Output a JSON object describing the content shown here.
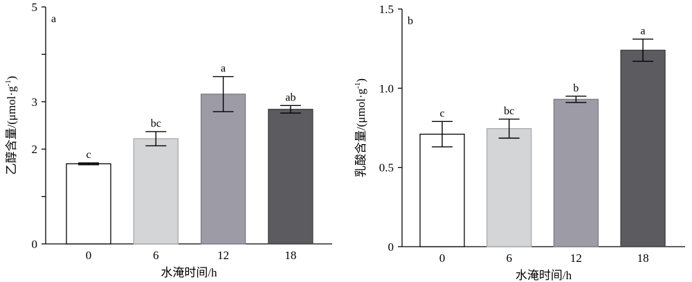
{
  "chart_data": [
    {
      "type": "bar",
      "panel_label": "a",
      "categories": [
        "0",
        "6",
        "12",
        "18"
      ],
      "values": [
        1.69,
        2.22,
        3.16,
        2.84
      ],
      "errors": [
        0.02,
        0.15,
        0.37,
        0.08
      ],
      "significance": [
        "c",
        "bc",
        "a",
        "ab"
      ],
      "ylabel": "乙醇含量/(μmol·g",
      "ylabel_sup": "-1",
      "ylabel_end": ")",
      "xlabel": "水淹时间/h",
      "ylim": [
        0,
        5
      ],
      "yticks": [
        0,
        1,
        2,
        3,
        4,
        5
      ],
      "ytick_labels": [
        "0",
        "",
        "2",
        "3",
        "",
        "5"
      ],
      "bar_colors": [
        "#ffffff",
        "#d4d5d7",
        "#9d9ca6",
        "#5c5b60"
      ],
      "bar_edge_colors": [
        "#000000",
        "#a9a9ab",
        "#7a7a82",
        "#3c3b40"
      ],
      "grid": false
    },
    {
      "type": "bar",
      "panel_label": "b",
      "categories": [
        "0",
        "6",
        "12",
        "18"
      ],
      "values": [
        0.71,
        0.745,
        0.93,
        1.24
      ],
      "errors": [
        0.08,
        0.06,
        0.02,
        0.07
      ],
      "significance": [
        "c",
        "bc",
        "b",
        "a"
      ],
      "ylabel": "乳酸含量/(μmol·g",
      "ylabel_sup": "-1",
      "ylabel_end": ")",
      "xlabel": "水淹时间/h",
      "ylim": [
        0,
        1.5
      ],
      "yticks": [
        0,
        0.5,
        1.0,
        1.5
      ],
      "ytick_labels": [
        "0",
        "0.5",
        "1.0",
        "1.5"
      ],
      "bar_colors": [
        "#ffffff",
        "#d4d5d7",
        "#9d9ca6",
        "#5c5b60"
      ],
      "bar_edge_colors": [
        "#000000",
        "#a9a9ab",
        "#7a7a82",
        "#3c3b40"
      ],
      "grid": false
    }
  ]
}
